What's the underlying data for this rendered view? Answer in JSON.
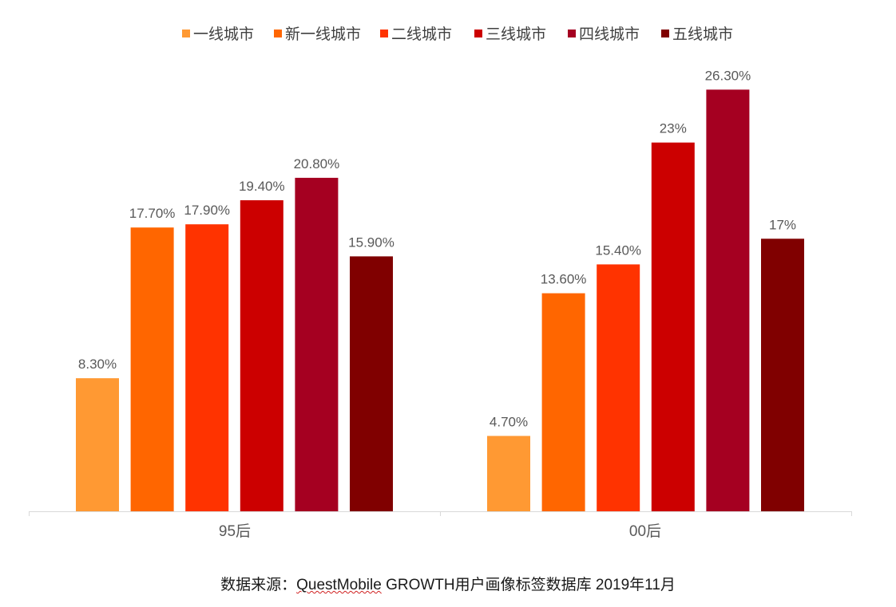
{
  "chart_data": {
    "type": "bar",
    "categories": [
      "95后",
      "00后"
    ],
    "series": [
      {
        "name": "一线城市",
        "color": "#FF9933",
        "values": [
          8.3,
          4.7
        ],
        "labels": [
          "8.30%",
          "4.70%"
        ]
      },
      {
        "name": "新一线城市",
        "color": "#FF6600",
        "values": [
          17.7,
          13.6
        ],
        "labels": [
          "17.70%",
          "13.60%"
        ]
      },
      {
        "name": "二线城市",
        "color": "#FF3300",
        "values": [
          17.9,
          15.4
        ],
        "labels": [
          "17.90%",
          "15.40%"
        ]
      },
      {
        "name": "三线城市",
        "color": "#CC0000",
        "values": [
          19.4,
          23
        ],
        "labels": [
          "19.40%",
          "23%"
        ]
      },
      {
        "name": "四线城市",
        "color": "#A50021",
        "values": [
          20.8,
          26.3
        ],
        "labels": [
          "20.80%",
          "26.30%"
        ]
      },
      {
        "name": "五线城市",
        "color": "#800000",
        "values": [
          15.9,
          17
        ],
        "labels": [
          "15.90%",
          "17%"
        ]
      }
    ],
    "ylim": [
      0,
      28
    ],
    "legend_position": "top",
    "grid": false
  },
  "source": {
    "prefix": "数据来源：",
    "brand": "QuestMobile",
    "suffix": " GROWTH用户画像标签数据库 2019年11月"
  }
}
